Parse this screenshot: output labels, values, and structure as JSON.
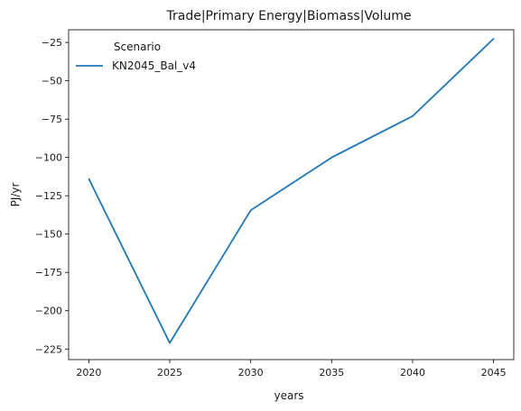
{
  "chart_data": {
    "type": "line",
    "title": "Trade|Primary Energy|Biomass|Volume",
    "xlabel": "years",
    "ylabel": "PJ/yr",
    "x": [
      2020,
      2025,
      2030,
      2035,
      2040,
      2045
    ],
    "xticks": [
      "2020",
      "2025",
      "2030",
      "2035",
      "2040",
      "2045"
    ],
    "yticks": [
      -25,
      -50,
      -75,
      -100,
      -125,
      -150,
      -175,
      -200,
      -225
    ],
    "ytick_labels": [
      "−25",
      "−50",
      "−75",
      "−100",
      "−125",
      "−150",
      "−175",
      "−200",
      "−225"
    ],
    "xlim": [
      2018.75,
      2046.25
    ],
    "ylim": [
      -231.9,
      -16.7
    ],
    "grid": false,
    "legend": {
      "title": "Scenario",
      "placement": "top-left"
    },
    "series": [
      {
        "name": "KN2045_Bal_v4",
        "color": "#1f77b4",
        "values": [
          -114,
          -221,
          -134.5,
          -100,
          -73,
          -22.6
        ]
      }
    ]
  }
}
